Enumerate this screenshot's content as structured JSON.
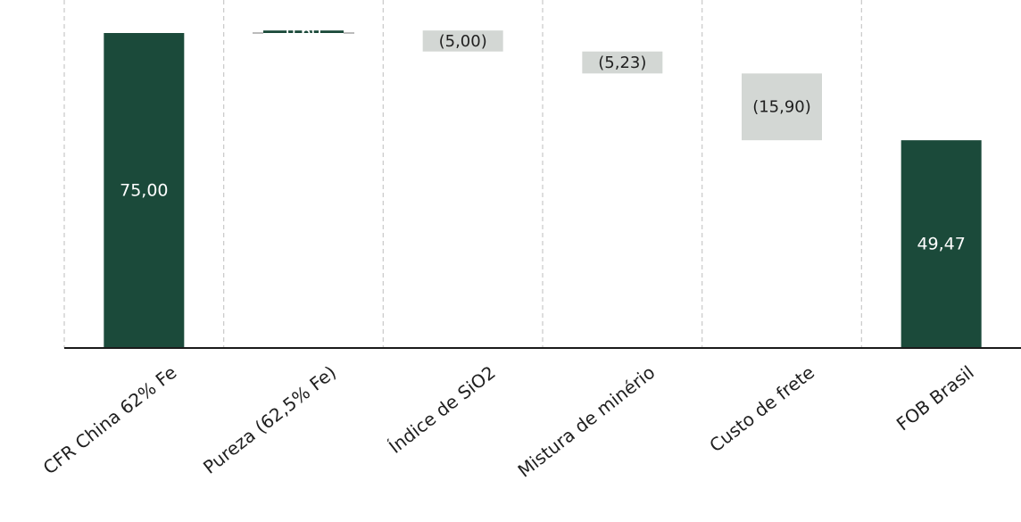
{
  "chart_data": {
    "type": "waterfall",
    "title": "",
    "xlabel": "",
    "ylabel": "",
    "ylim": [
      0,
      78
    ],
    "grid": "vertical-dashed-separators",
    "categories": [
      "CFR China 62% Fe",
      "Pureza (62,5% Fe)",
      "Índice de SiO2",
      "Mistura de minério",
      "Custo de frete",
      "FOB Brasil"
    ],
    "steps": [
      {
        "category": "CFR China 62% Fe",
        "kind": "total",
        "value": 75.0,
        "label": "75,00"
      },
      {
        "category": "Pureza (62,5% Fe)",
        "kind": "increase",
        "value": 0.6,
        "label": "0,60"
      },
      {
        "category": "Índice de SiO2",
        "kind": "decrease",
        "value": -5.0,
        "label": "(5,00)"
      },
      {
        "category": "Mistura de minério",
        "kind": "decrease",
        "value": -5.23,
        "label": "(5,23)"
      },
      {
        "category": "Custo de frete",
        "kind": "decrease",
        "value": -15.9,
        "label": "(15,90)"
      },
      {
        "category": "FOB Brasil",
        "kind": "total",
        "value": 49.47,
        "label": "49,47"
      }
    ],
    "colors": {
      "total": "#1b4a3a",
      "increase": "#1b4a3a",
      "decrease": "#d3d7d4"
    }
  }
}
